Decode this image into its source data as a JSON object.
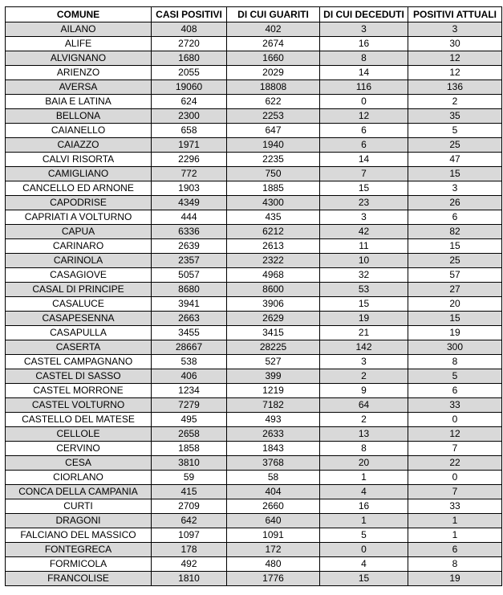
{
  "table": {
    "header": [
      "COMUNE",
      "CASI POSITIVI",
      "DI CUI GUARITI",
      "DI CUI DECEDUTI",
      "POSITIVI ATTUALI"
    ],
    "rows": [
      [
        "AILANO",
        408,
        402,
        3,
        3
      ],
      [
        "ALIFE",
        2720,
        2674,
        16,
        30
      ],
      [
        "ALVIGNANO",
        1680,
        1660,
        8,
        12
      ],
      [
        "ARIENZO",
        2055,
        2029,
        14,
        12
      ],
      [
        "AVERSA",
        19060,
        18808,
        116,
        136
      ],
      [
        "BAIA E LATINA",
        624,
        622,
        0,
        2
      ],
      [
        "BELLONA",
        2300,
        2253,
        12,
        35
      ],
      [
        "CAIANELLO",
        658,
        647,
        6,
        5
      ],
      [
        "CAIAZZO",
        1971,
        1940,
        6,
        25
      ],
      [
        "CALVI RISORTA",
        2296,
        2235,
        14,
        47
      ],
      [
        "CAMIGLIANO",
        772,
        750,
        7,
        15
      ],
      [
        "CANCELLO ED ARNONE",
        1903,
        1885,
        15,
        3
      ],
      [
        "CAPODRISE",
        4349,
        4300,
        23,
        26
      ],
      [
        "CAPRIATI A VOLTURNO",
        444,
        435,
        3,
        6
      ],
      [
        "CAPUA",
        6336,
        6212,
        42,
        82
      ],
      [
        "CARINARO",
        2639,
        2613,
        11,
        15
      ],
      [
        "CARINOLA",
        2357,
        2322,
        10,
        25
      ],
      [
        "CASAGIOVE",
        5057,
        4968,
        32,
        57
      ],
      [
        "CASAL DI PRINCIPE",
        8680,
        8600,
        53,
        27
      ],
      [
        "CASALUCE",
        3941,
        3906,
        15,
        20
      ],
      [
        "CASAPESENNA",
        2663,
        2629,
        19,
        15
      ],
      [
        "CASAPULLA",
        3455,
        3415,
        21,
        19
      ],
      [
        "CASERTA",
        28667,
        28225,
        142,
        300
      ],
      [
        "CASTEL CAMPAGNANO",
        538,
        527,
        3,
        8
      ],
      [
        "CASTEL DI SASSO",
        406,
        399,
        2,
        5
      ],
      [
        "CASTEL MORRONE",
        1234,
        1219,
        9,
        6
      ],
      [
        "CASTEL VOLTURNO",
        7279,
        7182,
        64,
        33
      ],
      [
        "CASTELLO DEL MATESE",
        495,
        493,
        2,
        0
      ],
      [
        "CELLOLE",
        2658,
        2633,
        13,
        12
      ],
      [
        "CERVINO",
        1858,
        1843,
        8,
        7
      ],
      [
        "CESA",
        3810,
        3768,
        20,
        22
      ],
      [
        "CIORLANO",
        59,
        58,
        1,
        0
      ],
      [
        "CONCA DELLA CAMPANIA",
        415,
        404,
        4,
        7
      ],
      [
        "CURTI",
        2709,
        2660,
        16,
        33
      ],
      [
        "DRAGONI",
        642,
        640,
        1,
        1
      ],
      [
        "FALCIANO DEL MASSICO",
        1097,
        1091,
        5,
        1
      ],
      [
        "FONTEGRECA",
        178,
        172,
        0,
        6
      ],
      [
        "FORMICOLA",
        492,
        480,
        4,
        8
      ],
      [
        "FRANCOLISE",
        1810,
        1776,
        15,
        19
      ]
    ]
  }
}
